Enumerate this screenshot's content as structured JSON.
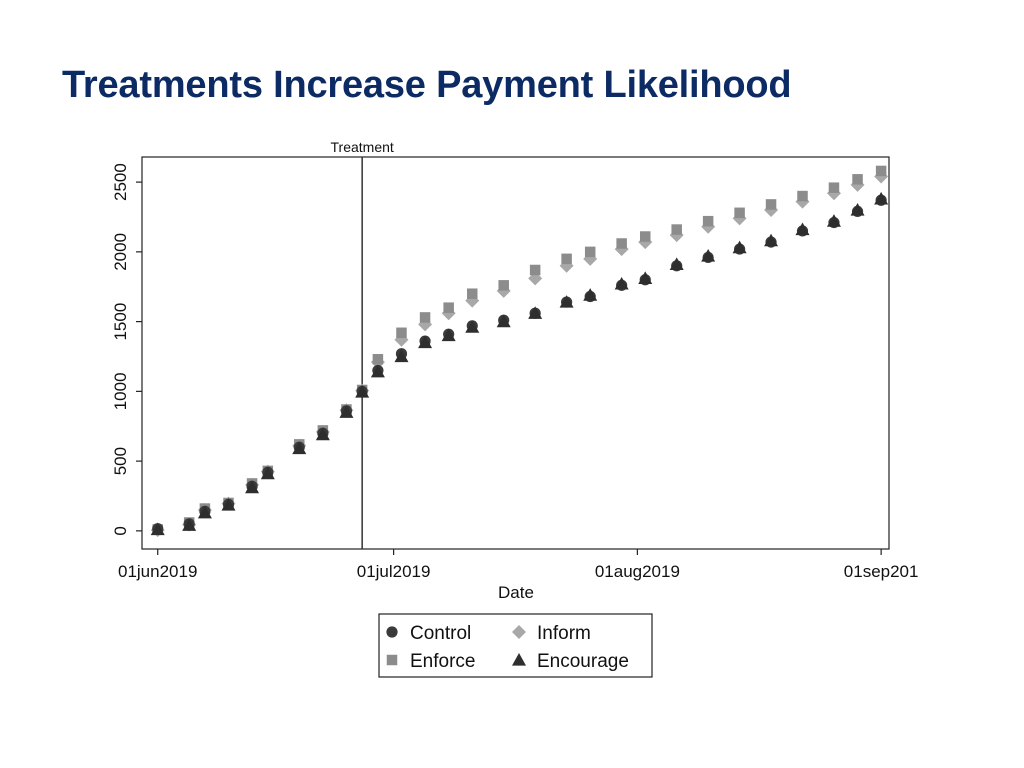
{
  "title": "Treatments Increase Payment Likelihood",
  "chart_data": {
    "type": "scatter",
    "xlabel": "Date",
    "ylabel": "",
    "x_tick_labels": [
      "01jun2019",
      "01jul2019",
      "01aug2019",
      "01sep201"
    ],
    "x_tick_values": [
      "2019-06-01",
      "2019-07-01",
      "2019-08-01",
      "2019-09-01"
    ],
    "xlim": [
      "2019-05-30",
      "2019-09-02"
    ],
    "y_ticks": [
      0,
      500,
      1000,
      1500,
      2000,
      2500
    ],
    "y_tick_labels": [
      "0",
      "500",
      "1000",
      "1500",
      "2000",
      "2500"
    ],
    "ylim": [
      -130,
      2680
    ],
    "grid": false,
    "legend_position": "bottom",
    "annotation": {
      "label": "Treatment",
      "x": "2019-06-27"
    },
    "colors": {
      "control": "#3a3a3a",
      "enforce": "#8c8c8c",
      "inform": "#a8a8a8",
      "encourage": "#2e2e2e"
    },
    "series": [
      {
        "name": "Control",
        "marker": "circle",
        "color": "#3a3a3a",
        "x": [
          "2019-06-01",
          "2019-06-05",
          "2019-06-07",
          "2019-06-10",
          "2019-06-13",
          "2019-06-15",
          "2019-06-19",
          "2019-06-22",
          "2019-06-25",
          "2019-06-27",
          "2019-06-29",
          "2019-07-02",
          "2019-07-05",
          "2019-07-08",
          "2019-07-11",
          "2019-07-15",
          "2019-07-19",
          "2019-07-23",
          "2019-07-26",
          "2019-07-30",
          "2019-08-02",
          "2019-08-06",
          "2019-08-10",
          "2019-08-14",
          "2019-08-18",
          "2019-08-22",
          "2019-08-26",
          "2019-08-29",
          "2019-09-01"
        ],
        "y": [
          15,
          50,
          140,
          190,
          320,
          420,
          600,
          700,
          860,
          1000,
          1150,
          1270,
          1360,
          1410,
          1470,
          1510,
          1560,
          1640,
          1680,
          1760,
          1800,
          1900,
          1960,
          2020,
          2070,
          2150,
          2210,
          2290,
          2370
        ]
      },
      {
        "name": "Enforce",
        "marker": "square",
        "color": "#8c8c8c",
        "x": [
          "2019-06-01",
          "2019-06-05",
          "2019-06-07",
          "2019-06-10",
          "2019-06-13",
          "2019-06-15",
          "2019-06-19",
          "2019-06-22",
          "2019-06-25",
          "2019-06-27",
          "2019-06-29",
          "2019-07-02",
          "2019-07-05",
          "2019-07-08",
          "2019-07-11",
          "2019-07-15",
          "2019-07-19",
          "2019-07-23",
          "2019-07-26",
          "2019-07-30",
          "2019-08-02",
          "2019-08-06",
          "2019-08-10",
          "2019-08-14",
          "2019-08-18",
          "2019-08-22",
          "2019-08-26",
          "2019-08-29",
          "2019-09-01"
        ],
        "y": [
          10,
          60,
          160,
          200,
          340,
          430,
          620,
          720,
          870,
          1010,
          1230,
          1420,
          1530,
          1600,
          1700,
          1760,
          1870,
          1950,
          2000,
          2060,
          2110,
          2160,
          2220,
          2280,
          2340,
          2400,
          2460,
          2520,
          2580
        ]
      },
      {
        "name": "Inform",
        "marker": "diamond",
        "color": "#a8a8a8",
        "x": [
          "2019-06-01",
          "2019-06-05",
          "2019-06-07",
          "2019-06-10",
          "2019-06-13",
          "2019-06-15",
          "2019-06-19",
          "2019-06-22",
          "2019-06-25",
          "2019-06-27",
          "2019-06-29",
          "2019-07-02",
          "2019-07-05",
          "2019-07-08",
          "2019-07-11",
          "2019-07-15",
          "2019-07-19",
          "2019-07-23",
          "2019-07-26",
          "2019-07-30",
          "2019-08-02",
          "2019-08-06",
          "2019-08-10",
          "2019-08-14",
          "2019-08-18",
          "2019-08-22",
          "2019-08-26",
          "2019-08-29",
          "2019-09-01"
        ],
        "y": [
          5,
          45,
          150,
          195,
          330,
          425,
          610,
          710,
          865,
          1005,
          1210,
          1370,
          1480,
          1560,
          1650,
          1720,
          1810,
          1900,
          1950,
          2020,
          2070,
          2120,
          2180,
          2240,
          2300,
          2360,
          2420,
          2480,
          2540
        ]
      },
      {
        "name": "Encourage",
        "marker": "triangle",
        "color": "#2e2e2e",
        "x": [
          "2019-06-01",
          "2019-06-05",
          "2019-06-07",
          "2019-06-10",
          "2019-06-13",
          "2019-06-15",
          "2019-06-19",
          "2019-06-22",
          "2019-06-25",
          "2019-06-27",
          "2019-06-29",
          "2019-07-02",
          "2019-07-05",
          "2019-07-08",
          "2019-07-11",
          "2019-07-15",
          "2019-07-19",
          "2019-07-23",
          "2019-07-26",
          "2019-07-30",
          "2019-08-02",
          "2019-08-06",
          "2019-08-10",
          "2019-08-14",
          "2019-08-18",
          "2019-08-22",
          "2019-08-26",
          "2019-08-29",
          "2019-09-01"
        ],
        "y": [
          10,
          40,
          130,
          185,
          310,
          410,
          590,
          690,
          850,
          995,
          1140,
          1250,
          1350,
          1400,
          1460,
          1500,
          1560,
          1640,
          1690,
          1770,
          1810,
          1910,
          1970,
          2030,
          2080,
          2160,
          2220,
          2300,
          2380
        ]
      }
    ]
  }
}
